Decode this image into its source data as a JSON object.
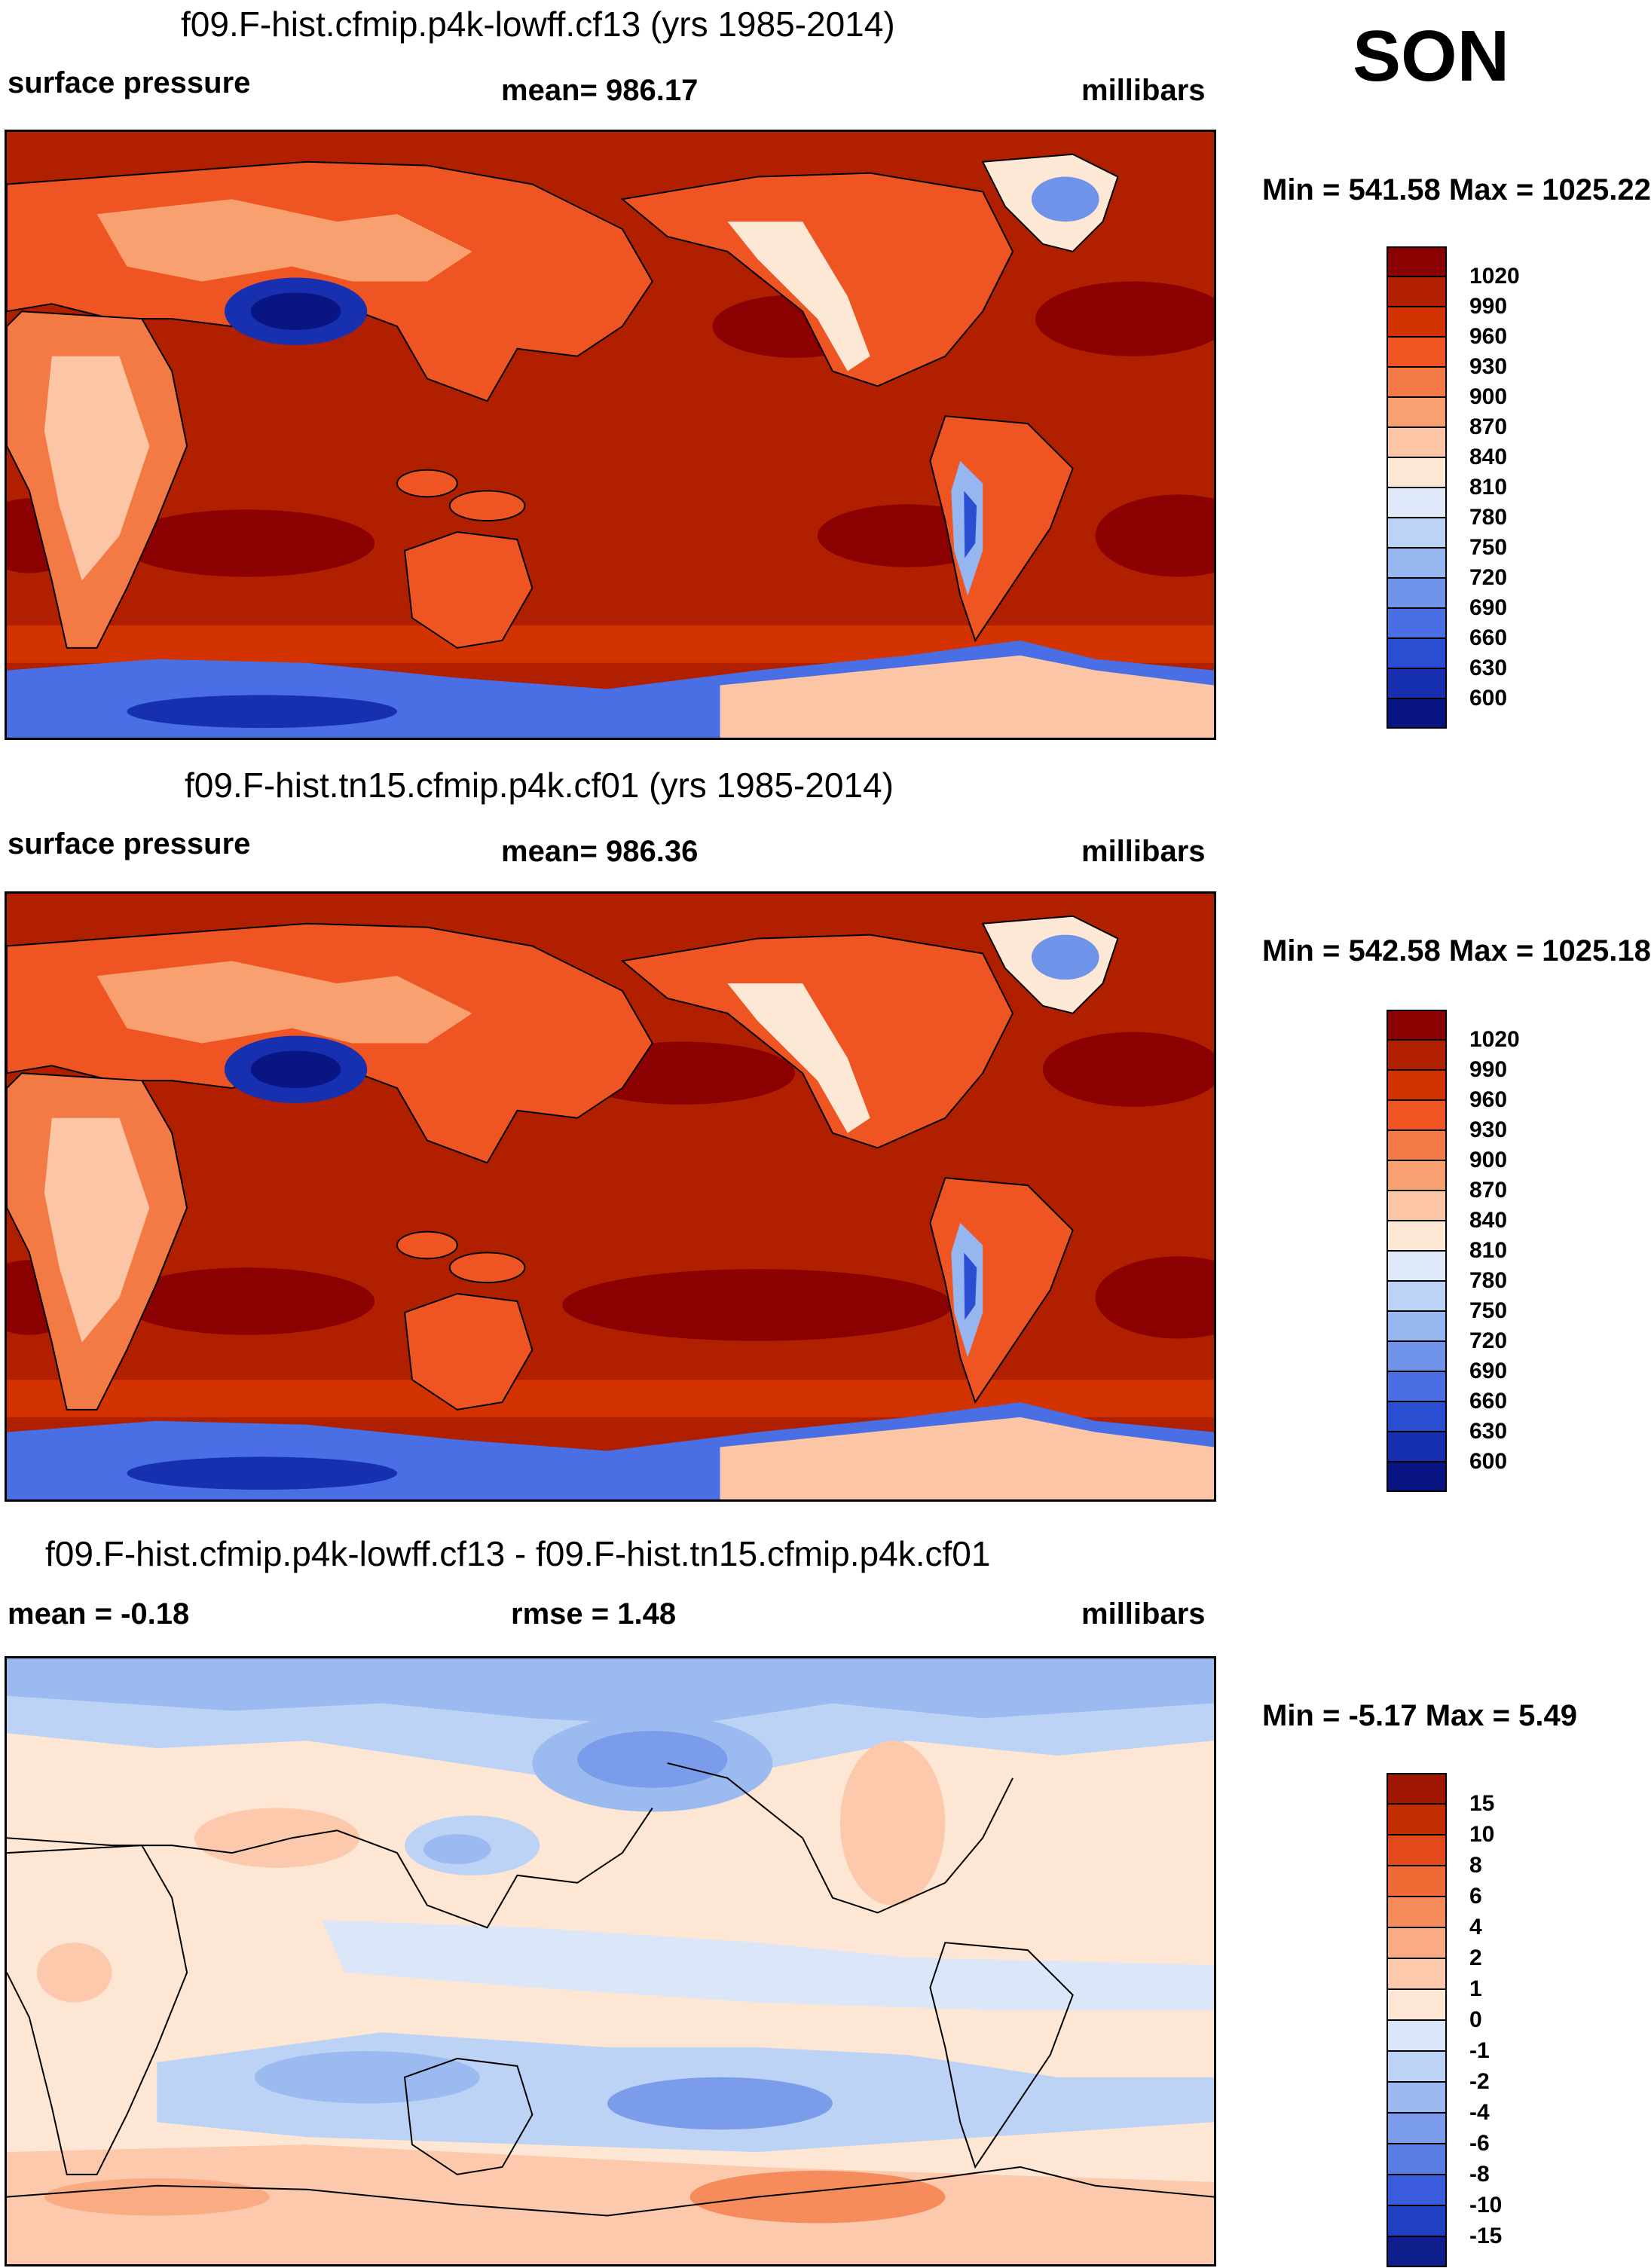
{
  "season": "SON",
  "panels": [
    {
      "title": "f09.F-hist.cfmip.p4k-lowff.cf13 (yrs 1985-2014)",
      "left_label": "surface pressure",
      "center_label": "mean= 986.17",
      "units": "millibars",
      "minmax": "Min = 541.58 Max = 1025.22"
    },
    {
      "title": "f09.F-hist.tn15.cfmip.p4k.cf01 (yrs 1985-2014)",
      "left_label": "surface pressure",
      "center_label": "mean= 986.36",
      "units": "millibars",
      "minmax": "Min = 542.58 Max = 1025.18"
    },
    {
      "title": "f09.F-hist.cfmip.p4k-lowff.cf13 - f09.F-hist.tn15.cfmip.p4k.cf01",
      "left_label": "mean =  -0.18",
      "center_label": "rmse =   1.48",
      "units": "millibars",
      "minmax": "Min =  -5.17 Max =   5.49"
    }
  ],
  "colorbars": {
    "abs": {
      "labels": [
        "1020",
        "990",
        "960",
        "930",
        "900",
        "870",
        "840",
        "810",
        "780",
        "750",
        "720",
        "690",
        "660",
        "630",
        "600"
      ],
      "colors": [
        "#8b0000",
        "#b02000",
        "#d33300",
        "#ee5522",
        "#f47a45",
        "#f9a070",
        "#fcc6a6",
        "#fde8d6",
        "#dfe9f9",
        "#bcd3f5",
        "#96b6f0",
        "#7093ea",
        "#4a6fe4",
        "#2a4ed2",
        "#1630b0",
        "#0a1584"
      ]
    },
    "diff": {
      "labels": [
        "15",
        "10",
        "8",
        "6",
        "4",
        "2",
        "1",
        "0",
        "-1",
        "-2",
        "-4",
        "-6",
        "-8",
        "-10",
        "-15"
      ],
      "colors": [
        "#a01600",
        "#c42d00",
        "#e24a1a",
        "#f06a36",
        "#f68c5c",
        "#f9ab84",
        "#fcc9ad",
        "#fde6d4",
        "#dbe7f9",
        "#bcd3f5",
        "#9bbaf0",
        "#7a9ceb",
        "#587de5",
        "#3a5cdc",
        "#2040c4",
        "#0e1f8c"
      ]
    }
  }
}
